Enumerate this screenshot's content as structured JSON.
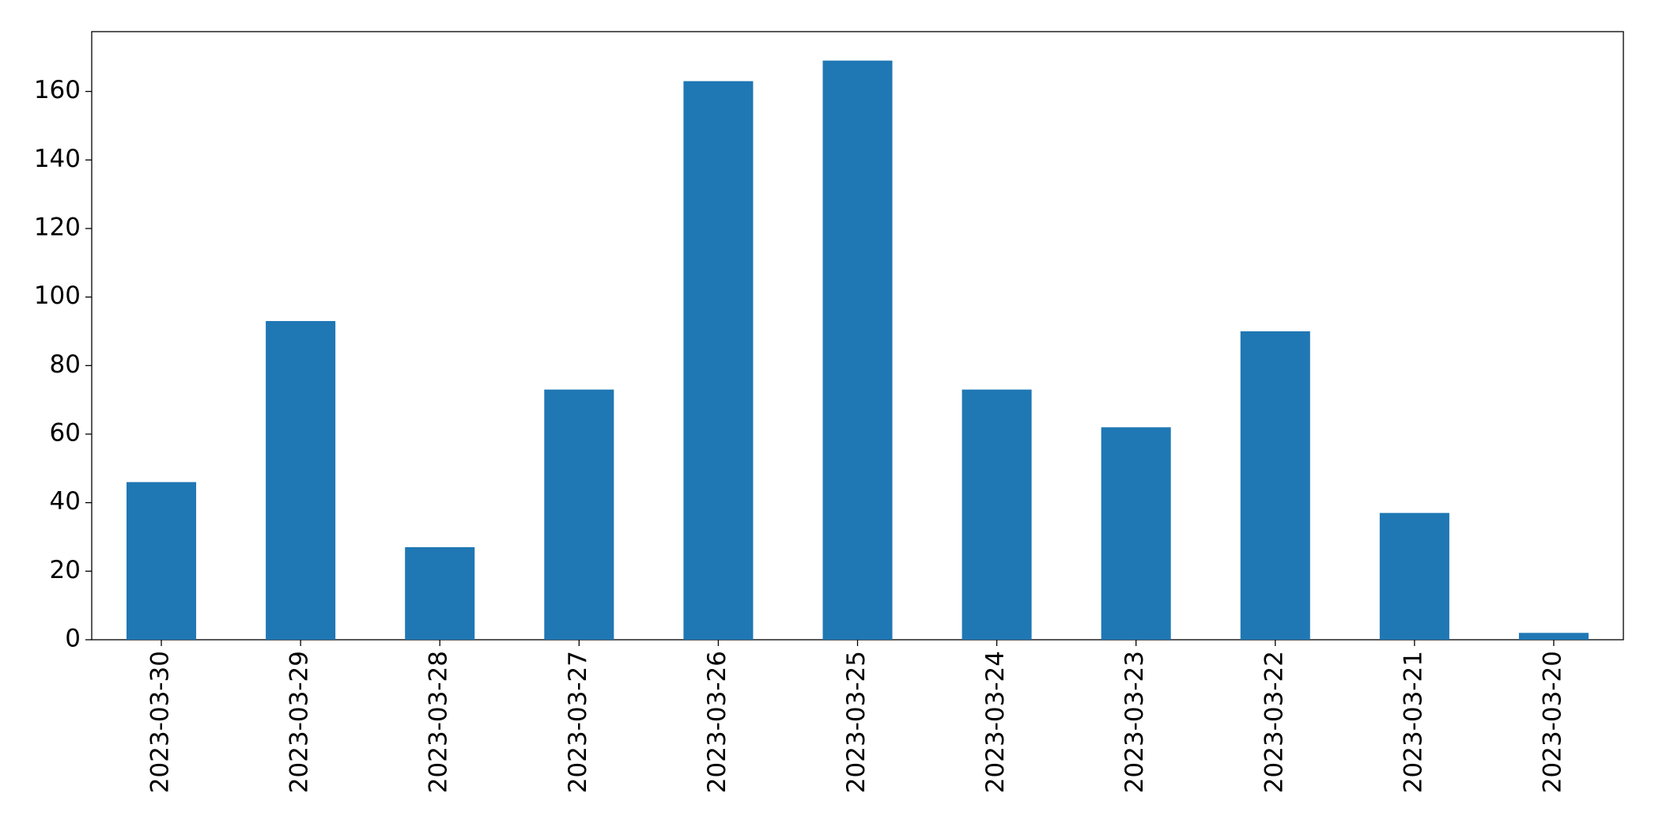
{
  "chart_data": {
    "type": "bar",
    "categories": [
      "2023-03-30",
      "2023-03-29",
      "2023-03-28",
      "2023-03-27",
      "2023-03-26",
      "2023-03-25",
      "2023-03-24",
      "2023-03-23",
      "2023-03-22",
      "2023-03-21",
      "2023-03-20"
    ],
    "values": [
      46,
      93,
      27,
      73,
      163,
      169,
      73,
      62,
      90,
      37,
      2
    ],
    "color": "#1f77b4",
    "ylim": [
      0,
      177.45
    ],
    "yticks": [
      0,
      20,
      40,
      60,
      80,
      100,
      120,
      140,
      160
    ],
    "grid": false
  }
}
